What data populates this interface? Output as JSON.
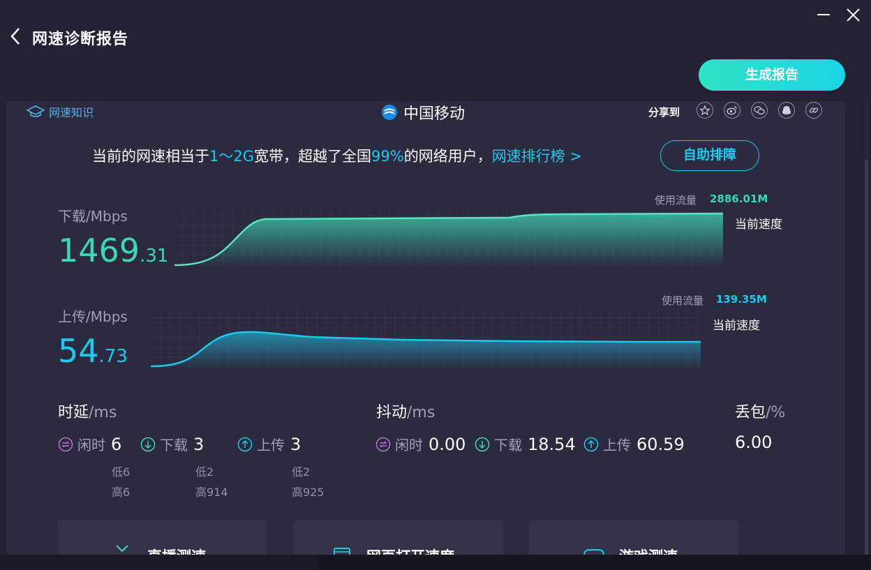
{
  "header": {
    "title": "网速诊断报告",
    "generate_button": "生成报告"
  },
  "card": {
    "knowledge_link": "网速知识",
    "isp_name": "中国移动",
    "share_label": "分享到",
    "share_icons": [
      "favorite-icon",
      "weibo-icon",
      "wechat-icon",
      "qq-icon",
      "link-icon"
    ],
    "summary": {
      "prefix": "当前的网速相当于",
      "bandwidth": "1～2G",
      "mid1": "宽带，超越了全国",
      "percent": "99%",
      "mid2": "的网络用户，",
      "rank_link": "网速排行榜 >"
    },
    "self_check_button": "自助排障"
  },
  "download": {
    "label": "下载/Mbps",
    "int": "1469",
    "dec": ".31",
    "usage_label": "使用流量",
    "usage_value": "2886.01M",
    "current_label": "当前速度",
    "color": "#3ed8b0"
  },
  "upload": {
    "label": "上传/Mbps",
    "int": "54",
    "dec": ".73",
    "usage_label": "使用流量",
    "usage_value": "139.35M",
    "current_label": "当前速度",
    "color": "#1ec9ee"
  },
  "latency": {
    "title": "时延",
    "unit": "/ms",
    "idle_label": "闲时",
    "idle": "6",
    "idle_low": "低6",
    "idle_high": "高6",
    "down_label": "下载",
    "down": "3",
    "down_low": "低2",
    "down_high": "高914",
    "up_label": "上传",
    "up": "3",
    "up_low": "低2",
    "up_high": "高925"
  },
  "jitter": {
    "title": "抖动",
    "unit": "/ms",
    "idle_label": "闲时",
    "idle": "0.00",
    "down_label": "下载",
    "down": "18.54",
    "up_label": "上传",
    "up": "60.59"
  },
  "loss": {
    "title": "丢包",
    "unit": "/%",
    "value": "6.00"
  },
  "tiles": {
    "live": "直播测速",
    "web": "网页打开速度",
    "game": "游戏测速"
  },
  "colors": {
    "accent": "#1ec9ee",
    "download": "#3ed8b0",
    "idle_icon": "#c86be0",
    "down_icon": "#3ed8b0",
    "up_icon": "#1ec9ee"
  }
}
